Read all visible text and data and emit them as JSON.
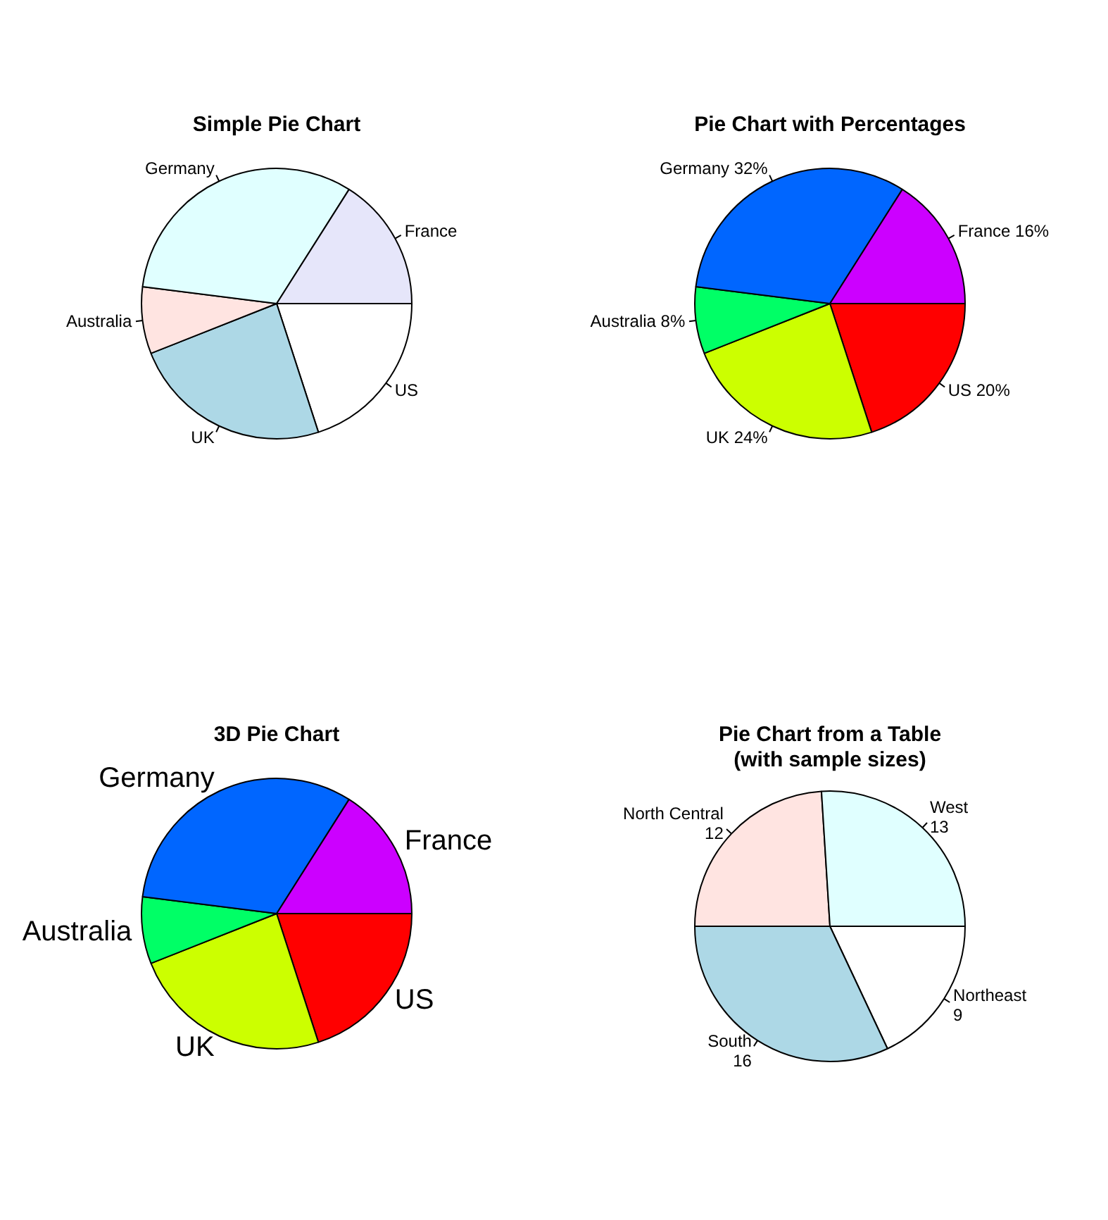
{
  "chart_data": [
    {
      "type": "pie",
      "title": "Simple Pie Chart",
      "categories": [
        "US",
        "UK",
        "Australia",
        "Germany",
        "France"
      ],
      "values": [
        20,
        24,
        8,
        32,
        16
      ],
      "colors": [
        "#ffffff",
        "#add8e6",
        "#ffe4e1",
        "#e0ffff",
        "#e6e6fa"
      ]
    },
    {
      "type": "pie",
      "title": "Pie Chart with Percentages",
      "categories": [
        "US",
        "UK",
        "Australia",
        "Germany",
        "France"
      ],
      "values": [
        20,
        24,
        8,
        32,
        16
      ],
      "value_labels": [
        "20%",
        "24%",
        "8%",
        "32%",
        "16%"
      ],
      "colors": [
        "#ff0000",
        "#ccff00",
        "#00ff66",
        "#0066ff",
        "#cc00ff"
      ]
    },
    {
      "type": "pie",
      "title": "3D Pie Chart",
      "categories": [
        "US",
        "UK",
        "Australia",
        "Germany",
        "France"
      ],
      "values": [
        20,
        24,
        8,
        32,
        16
      ],
      "colors": [
        "#ff0000",
        "#ccff00",
        "#00ff66",
        "#0066ff",
        "#cc00ff"
      ]
    },
    {
      "type": "pie",
      "title": "Pie Chart from a Table\n(with sample sizes)",
      "categories": [
        "Northeast",
        "South",
        "North Central",
        "West"
      ],
      "values": [
        9,
        16,
        12,
        13
      ],
      "data_labels": true,
      "colors": [
        "#ffffff",
        "#add8e6",
        "#ffe4e1",
        "#e0ffff"
      ]
    }
  ]
}
